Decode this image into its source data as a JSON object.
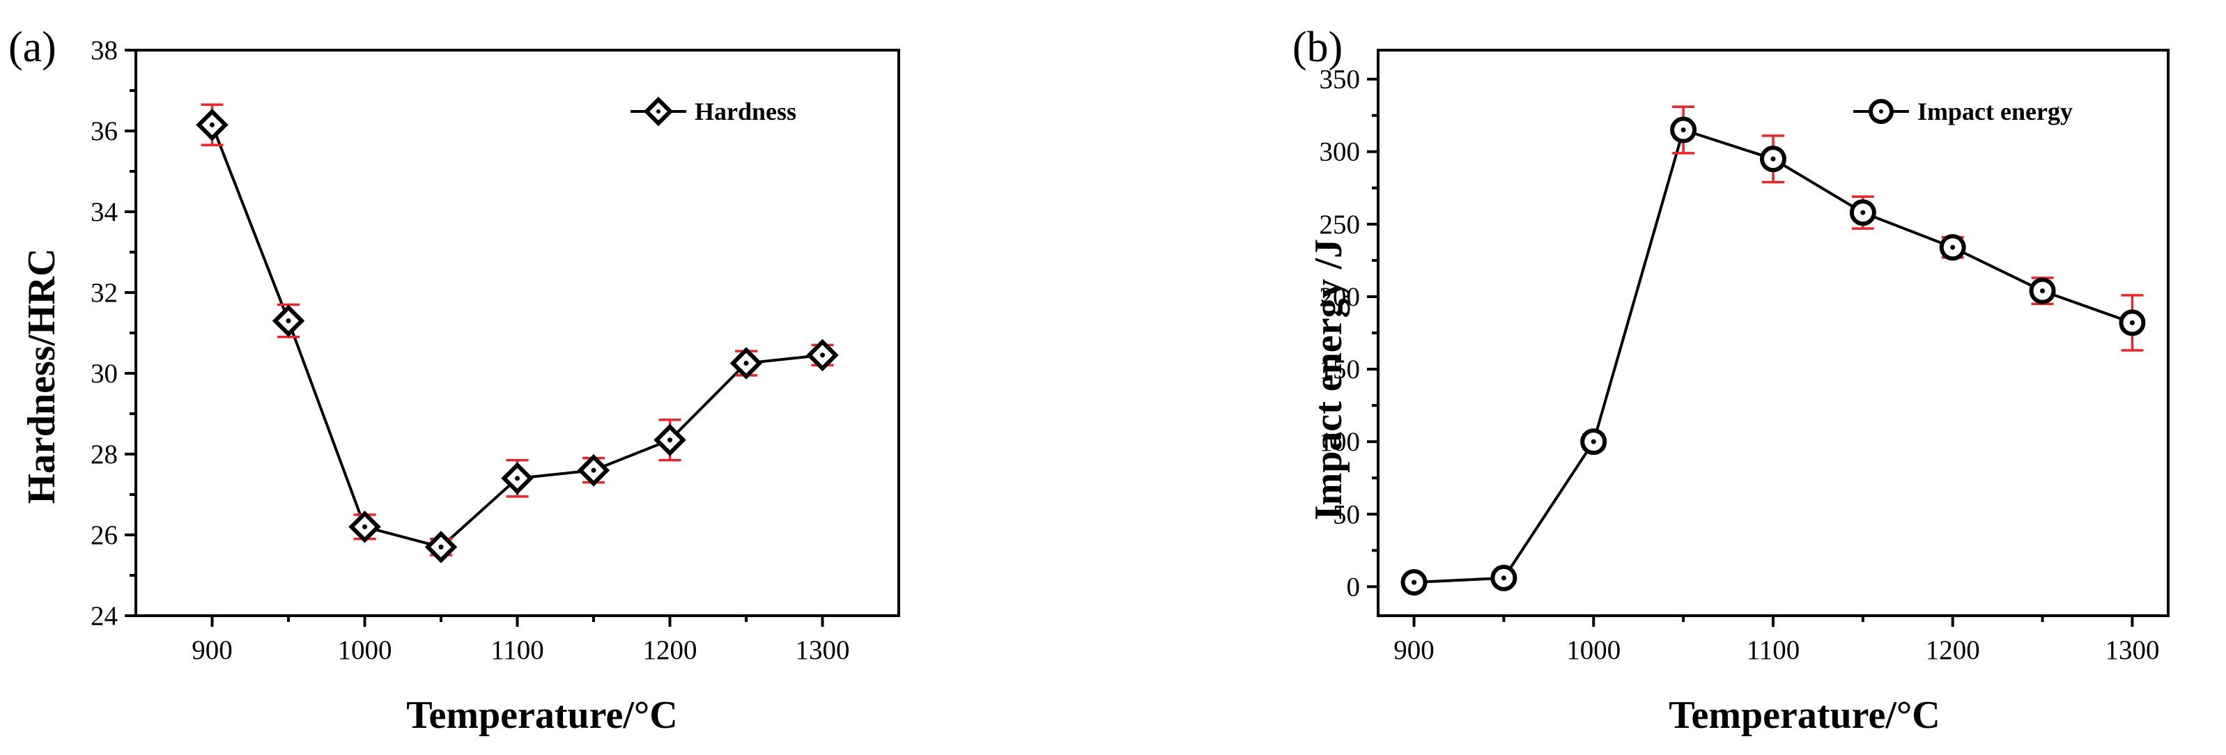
{
  "chart_data": [
    {
      "type": "line",
      "panel_label": "(a)",
      "xlabel": "Temperature/°C",
      "ylabel": "Hardness/HRC",
      "xlim": [
        850,
        1350
      ],
      "ylim": [
        24,
        38
      ],
      "xticks": [
        900,
        1000,
        1100,
        1200,
        1300
      ],
      "xminor": [
        950,
        1050,
        1150,
        1250
      ],
      "yticks": [
        24,
        26,
        28,
        30,
        32,
        34,
        36,
        38
      ],
      "legend_position": "top-right",
      "marker": "diamond",
      "series": [
        {
          "name": "Hardness",
          "x": [
            900,
            950,
            1000,
            1050,
            1100,
            1150,
            1200,
            1250,
            1300
          ],
          "values": [
            36.15,
            31.3,
            26.2,
            25.7,
            27.4,
            27.6,
            28.35,
            30.25,
            30.45
          ],
          "error": [
            0.5,
            0.4,
            0.3,
            0.2,
            0.45,
            0.3,
            0.5,
            0.3,
            0.25
          ]
        }
      ],
      "colors": {
        "line": "#000000",
        "error_bar": "#e8262a"
      }
    },
    {
      "type": "line",
      "panel_label": "(b)",
      "xlabel": "Temperature/°C",
      "ylabel": "Impact energy /J",
      "xlim": [
        880,
        1320
      ],
      "ylim": [
        -20,
        370
      ],
      "xticks": [
        900,
        1000,
        1100,
        1200,
        1300
      ],
      "xminor": [
        950,
        1050,
        1150,
        1250
      ],
      "yticks": [
        0,
        50,
        100,
        150,
        200,
        250,
        300,
        350
      ],
      "legend_position": "top-right",
      "marker": "circle",
      "series": [
        {
          "name": "Impact energy",
          "x": [
            900,
            950,
            1000,
            1050,
            1100,
            1150,
            1200,
            1250,
            1300
          ],
          "values": [
            3,
            6,
            100,
            315,
            295,
            258,
            234,
            204,
            182
          ],
          "error": [
            4,
            4,
            5,
            16,
            16,
            11,
            7,
            9,
            19
          ]
        }
      ],
      "colors": {
        "line": "#000000",
        "error_bar": "#e8262a"
      }
    }
  ]
}
